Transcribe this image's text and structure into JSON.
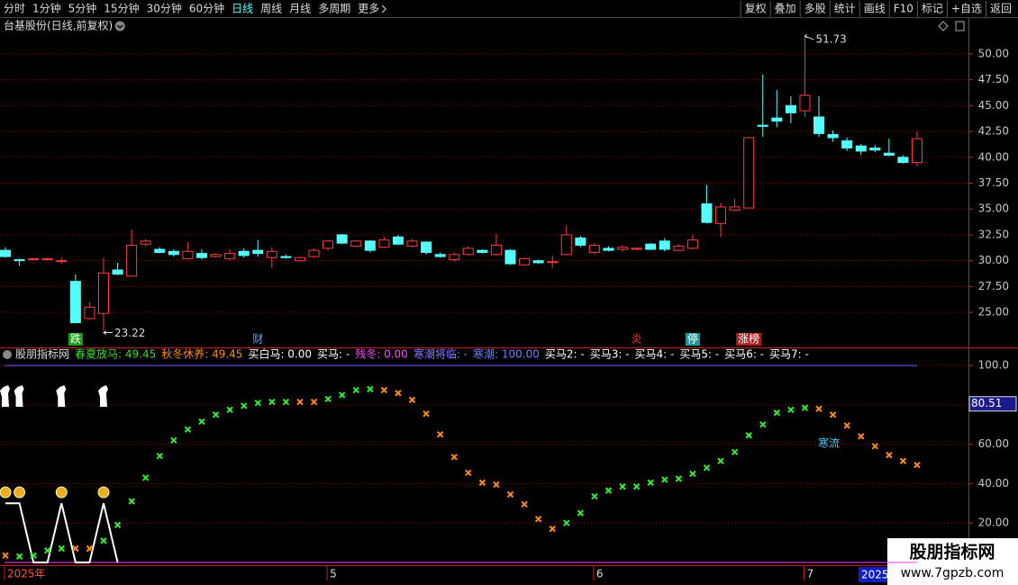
{
  "toolbar": {
    "periods": [
      "分时",
      "1分钟",
      "5分钟",
      "15分钟",
      "30分钟",
      "60分钟",
      "日线",
      "周线",
      "月线",
      "多周期",
      "更多"
    ],
    "active_index": 6,
    "tools": [
      "复权",
      "叠加",
      "多股",
      "统计",
      "画线",
      "F10",
      "标记",
      "+自选",
      "返回"
    ]
  },
  "chart_data": [
    {
      "type": "candlestick",
      "title": "台基股份(日线,前复权)",
      "up_color": "#ff3c3c",
      "down_color": "#54ffff",
      "open": [
        31.0,
        30.1,
        30.1,
        30.1,
        30.0,
        28.0,
        24.4,
        24.9,
        29.1,
        28.5,
        31.6,
        31.1,
        30.9,
        30.2,
        30.7,
        30.4,
        30.2,
        30.9,
        31.0,
        30.3,
        30.4,
        30.0,
        30.4,
        31.2,
        32.5,
        31.4,
        31.9,
        31.3,
        32.3,
        31.4,
        31.8,
        30.6,
        30.1,
        30.6,
        31.0,
        30.6,
        31.0,
        29.6,
        30.0,
        29.9,
        30.6,
        32.2,
        30.8,
        31.2,
        31.1,
        31.1,
        31.6,
        31.9,
        31.0,
        31.2,
        35.5,
        33.6,
        34.9,
        35.1,
        43.1,
        43.8,
        45.0,
        44.5,
        43.9,
        42.2,
        41.6,
        41.1,
        40.9,
        40.4,
        40.0,
        39.5
      ],
      "high": [
        31.3,
        30.2,
        30.3,
        30.3,
        30.3,
        28.66,
        26.0,
        30.3,
        29.8,
        33.0,
        32.1,
        31.3,
        31.1,
        31.8,
        31.1,
        30.7,
        31.1,
        31.2,
        32.0,
        31.3,
        30.6,
        30.4,
        31.2,
        32.0,
        32.6,
        32.0,
        32.0,
        32.3,
        32.5,
        32.1,
        31.9,
        30.8,
        30.8,
        31.4,
        31.1,
        32.6,
        31.1,
        30.3,
        30.1,
        30.5,
        33.4,
        32.4,
        31.7,
        31.4,
        31.5,
        31.3,
        31.7,
        32.2,
        31.6,
        32.5,
        37.3,
        35.6,
        36.0,
        41.9,
        48.0,
        46.5,
        45.9,
        51.73,
        45.9,
        42.6,
        41.9,
        41.3,
        41.2,
        41.8,
        40.2,
        42.5
      ],
      "low": [
        30.3,
        29.5,
        30.0,
        30.0,
        29.7,
        24.0,
        24.3,
        23.22,
        28.6,
        28.5,
        31.4,
        30.7,
        30.4,
        30.1,
        30.1,
        30.3,
        30.0,
        30.3,
        30.4,
        29.3,
        30.2,
        29.9,
        30.3,
        31.0,
        31.6,
        31.3,
        30.8,
        31.2,
        31.5,
        31.3,
        30.6,
        30.3,
        29.9,
        30.5,
        30.7,
        30.5,
        29.6,
        29.5,
        29.7,
        29.3,
        30.5,
        31.3,
        30.6,
        30.9,
        30.9,
        31.0,
        31.0,
        30.9,
        30.9,
        31.1,
        33.6,
        32.3,
        34.8,
        35.1,
        42.0,
        42.9,
        43.3,
        43.9,
        42.0,
        41.5,
        40.6,
        40.2,
        40.5,
        40.1,
        39.4,
        39.1
      ],
      "close": [
        30.4,
        30.0,
        30.2,
        30.2,
        30.0,
        24.0,
        25.5,
        28.8,
        28.7,
        31.5,
        31.9,
        30.8,
        30.6,
        30.9,
        30.3,
        30.6,
        30.7,
        30.5,
        30.7,
        30.9,
        30.3,
        30.3,
        31.0,
        31.9,
        31.7,
        31.9,
        31.0,
        32.0,
        31.6,
        31.9,
        30.8,
        30.4,
        30.6,
        31.2,
        30.8,
        31.5,
        29.7,
        30.2,
        29.8,
        29.9,
        32.5,
        31.5,
        31.5,
        31.0,
        31.3,
        31.2,
        31.1,
        31.1,
        31.4,
        32.0,
        33.7,
        35.2,
        35.2,
        41.9,
        43.0,
        43.5,
        44.3,
        46.0,
        42.3,
        41.9,
        40.9,
        40.6,
        40.7,
        40.2,
        39.5,
        41.8
      ],
      "markers": [
        null,
        null,
        null,
        null,
        null,
        {
          "label": "跌",
          "color": "#ffffff",
          "background": "#1a9e1a"
        },
        null,
        null,
        null,
        null,
        null,
        null,
        null,
        null,
        null,
        null,
        null,
        null,
        {
          "label": "财",
          "color": "#5aa0ff"
        },
        null,
        null,
        null,
        null,
        null,
        null,
        null,
        null,
        null,
        null,
        null,
        null,
        null,
        null,
        null,
        null,
        null,
        null,
        null,
        null,
        null,
        null,
        null,
        null,
        null,
        null,
        {
          "label": "炎",
          "color": "#ff3030"
        },
        null,
        null,
        null,
        {
          "label": "停",
          "color": "#ffffff",
          "background": "#1a9a9a"
        },
        null,
        null,
        null,
        {
          "label": "涨榜",
          "color": "#ffffff",
          "background": "#a82020"
        },
        null,
        null,
        null,
        null,
        null,
        null,
        null,
        null,
        null,
        null,
        null,
        null
      ],
      "ylim": [
        21.7,
        53.3
      ],
      "yticks": [
        {
          "value": 25,
          "label": "25.00"
        },
        {
          "value": 27.5,
          "label": "27.50"
        },
        {
          "value": 30,
          "label": "30.00"
        },
        {
          "value": 32.5,
          "label": "32.50"
        },
        {
          "value": 35,
          "label": "35.00"
        },
        {
          "value": 37.5,
          "label": "37.50"
        },
        {
          "value": 40,
          "label": "40.00"
        },
        {
          "value": 42.5,
          "label": "42.50"
        },
        {
          "value": 45,
          "label": "45.00"
        },
        {
          "value": 47.5,
          "label": "47.50"
        },
        {
          "value": 50,
          "label": "50.00"
        }
      ],
      "grid": true
    },
    {
      "type": "scatter",
      "header": [
        {
          "text": "股朋指标网",
          "color": "#dddddd"
        },
        {
          "text": "春夏放马: 49.45",
          "color": "#33dd33"
        },
        {
          "text": "秋冬休养: 49.45",
          "color": "#ff8c1a"
        },
        {
          "text": "买白马: 0.00",
          "color": "#ffffff"
        },
        {
          "text": "买马: -",
          "color": "#ffffff"
        },
        {
          "text": "残冬: 0.00",
          "color": "#ff44ff"
        },
        {
          "text": "寒潮将临: -",
          "color": "#8a7cff"
        },
        {
          "text": "寒潮: 100.00",
          "color": "#6a80ff"
        },
        {
          "text": "买马2: -",
          "color": "#ffffff"
        },
        {
          "text": "买马3: -",
          "color": "#ffffff"
        },
        {
          "text": "买马4: -",
          "color": "#ffffff"
        },
        {
          "text": "买马5: -",
          "color": "#ffffff"
        },
        {
          "text": "买马6: -",
          "color": "#ffffff"
        },
        {
          "text": "买马7: -",
          "color": "#ffffff"
        }
      ],
      "categories": [
        "2025年",
        null,
        null,
        null,
        null,
        null,
        null,
        null,
        null,
        null,
        null,
        null,
        null,
        null,
        null,
        null,
        null,
        null,
        null,
        null,
        null,
        null,
        null,
        "5",
        null,
        null,
        null,
        null,
        null,
        null,
        null,
        null,
        null,
        null,
        null,
        null,
        null,
        null,
        null,
        null,
        null,
        null,
        "6",
        null,
        null,
        null,
        null,
        null,
        null,
        null,
        null,
        null,
        null,
        null,
        null,
        null,
        null,
        "7",
        null,
        null,
        null,
        null,
        null,
        null,
        null,
        null
      ],
      "series": [
        {
          "color": "#33ee33",
          "values": [
            null,
            3,
            3.5,
            6,
            7,
            null,
            null,
            11,
            19,
            31,
            43,
            54,
            62,
            67.5,
            71.5,
            75,
            77.5,
            79.5,
            81,
            81.5,
            81.5,
            null,
            null,
            83,
            85,
            87.5,
            88,
            null,
            null,
            null,
            null,
            null,
            null,
            null,
            null,
            null,
            null,
            null,
            null,
            null,
            20,
            25,
            33.5,
            36.5,
            38.5,
            38.5,
            40.5,
            42,
            42.5,
            45,
            48,
            51.5,
            56,
            64.5,
            70,
            76,
            77.5,
            78.5,
            null,
            null,
            null,
            null,
            null,
            null,
            null,
            null
          ]
        },
        {
          "color": "#ff8c1a",
          "values": [
            3.5,
            null,
            null,
            null,
            null,
            7,
            7,
            null,
            null,
            null,
            null,
            null,
            null,
            null,
            null,
            null,
            null,
            null,
            null,
            null,
            null,
            81.5,
            81.5,
            null,
            null,
            null,
            null,
            87.5,
            86,
            82.5,
            75.5,
            65,
            53.5,
            45.5,
            40.5,
            39.5,
            34.5,
            29.5,
            22,
            17,
            null,
            null,
            null,
            null,
            null,
            null,
            null,
            null,
            null,
            null,
            null,
            null,
            null,
            null,
            null,
            null,
            null,
            null,
            78,
            75,
            69.5,
            64,
            59,
            54.5,
            51.5,
            49.45
          ]
        }
      ],
      "signal_line": {
        "color": "#ffffff",
        "values": [
          30,
          30,
          0,
          0,
          30,
          0,
          0,
          30,
          0,
          null,
          null,
          null,
          null,
          null,
          null,
          null,
          null,
          null,
          null,
          null,
          null,
          null,
          null,
          null,
          null,
          null,
          null,
          null,
          null,
          null,
          null,
          null,
          null,
          null,
          null,
          null,
          null,
          null,
          null,
          null,
          null,
          null,
          null,
          null,
          null,
          null,
          null,
          null,
          null,
          null,
          null,
          null,
          null,
          null,
          null,
          null,
          null,
          null,
          null,
          null,
          null,
          null,
          null,
          null,
          null,
          null
        ]
      },
      "hlines": [
        {
          "value": 100,
          "color": "#7a5cff"
        },
        {
          "value": 0,
          "color": "#ff33ff"
        }
      ],
      "annotation": "寒流",
      "cursor_value": 80.51,
      "ylim": [
        -1,
        106
      ],
      "yticks": [
        {
          "value": 20,
          "label": "20.00"
        },
        {
          "value": 40,
          "label": "40.00"
        },
        {
          "value": 60,
          "label": "60.00"
        },
        {
          "value": 80,
          "label": "80.00"
        },
        {
          "value": 100,
          "label": "100.0"
        }
      ],
      "grid": true
    }
  ],
  "cursor_date": "2025/",
  "watermark": {
    "title": "股朋指标网",
    "url": "www.7gpzb.com"
  }
}
